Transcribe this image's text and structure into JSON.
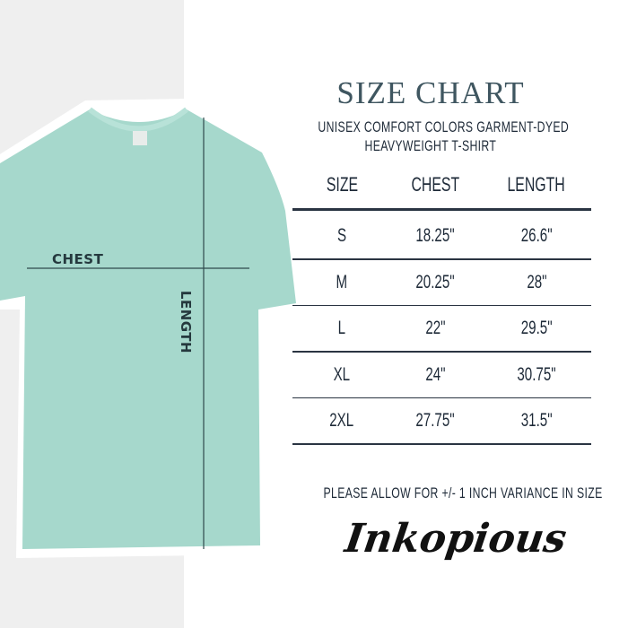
{
  "title": "SIZE CHART",
  "subtitle_lines": [
    "UNISEX COMFORT COLORS GARMENT-DYED",
    "HEAVYWEIGHT T-SHIRT"
  ],
  "shirt": {
    "color": "#a6d8cc",
    "chest_label": "CHEST",
    "length_label": "LENGTH"
  },
  "table": {
    "headers": [
      "SIZE",
      "CHEST",
      "LENGTH"
    ],
    "rows": [
      [
        "S",
        "18.25\"",
        "26.6\""
      ],
      [
        "M",
        "20.25\"",
        "28\""
      ],
      [
        "L",
        "22\"",
        "29.5\""
      ],
      [
        "XL",
        "24\"",
        "30.75\""
      ],
      [
        "2XL",
        "27.75\"",
        "31.5\""
      ]
    ]
  },
  "note": "PLEASE ALLOW FOR +/- 1 INCH VARIANCE IN SIZE",
  "logo": "Inkopious"
}
